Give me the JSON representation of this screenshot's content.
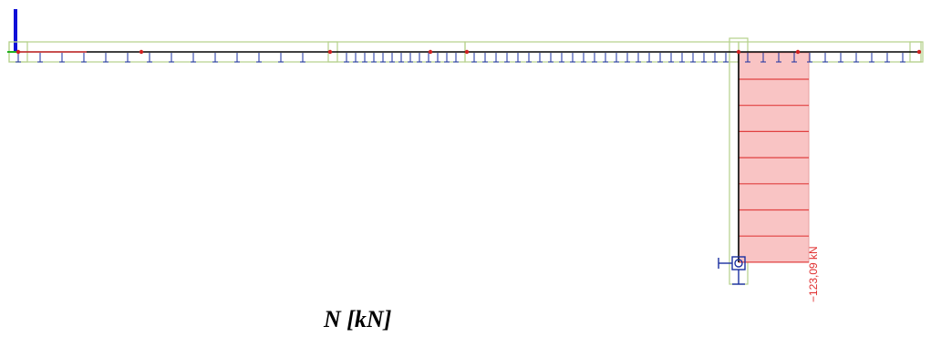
{
  "diagram": {
    "caption": "N [kN]",
    "force_value_label": "−123,09 kN",
    "force_value": -123.09,
    "force_unit": "kN"
  },
  "colors": {
    "beam": "#000000",
    "frame": "#b5d08a",
    "support": "#1a2fa0",
    "axis": "#1010d8",
    "force_fill": "#f9c4c4",
    "force_line": "#e04040",
    "node": "#d02020",
    "label": "#e03030"
  }
}
